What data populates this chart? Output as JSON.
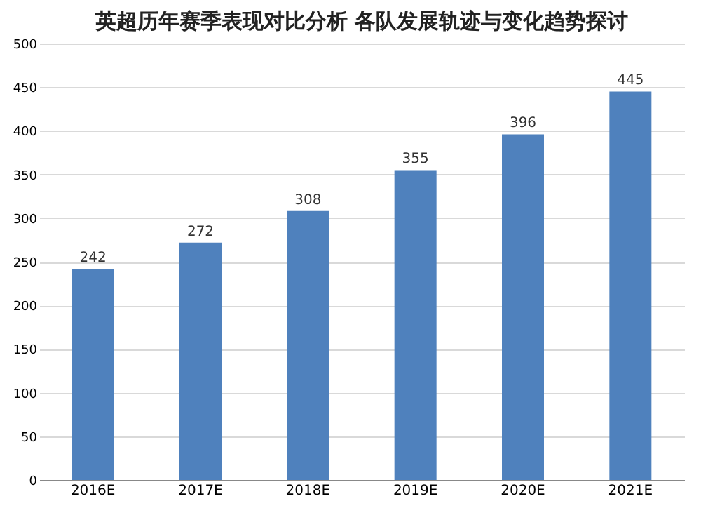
{
  "chart_data": {
    "type": "bar",
    "title": "英超历年赛季表现对比分析 各队发展轨迹与变化趋势探讨",
    "categories": [
      "2016E",
      "2017E",
      "2018E",
      "2019E",
      "2020E",
      "2021E"
    ],
    "values": [
      242,
      272,
      308,
      355,
      396,
      445
    ],
    "color": "#4f81bd",
    "ylim": [
      0,
      500
    ],
    "yticks": [
      0,
      50,
      100,
      150,
      200,
      250,
      300,
      350,
      400,
      450,
      500
    ],
    "grid": "y",
    "data_labels": true
  }
}
